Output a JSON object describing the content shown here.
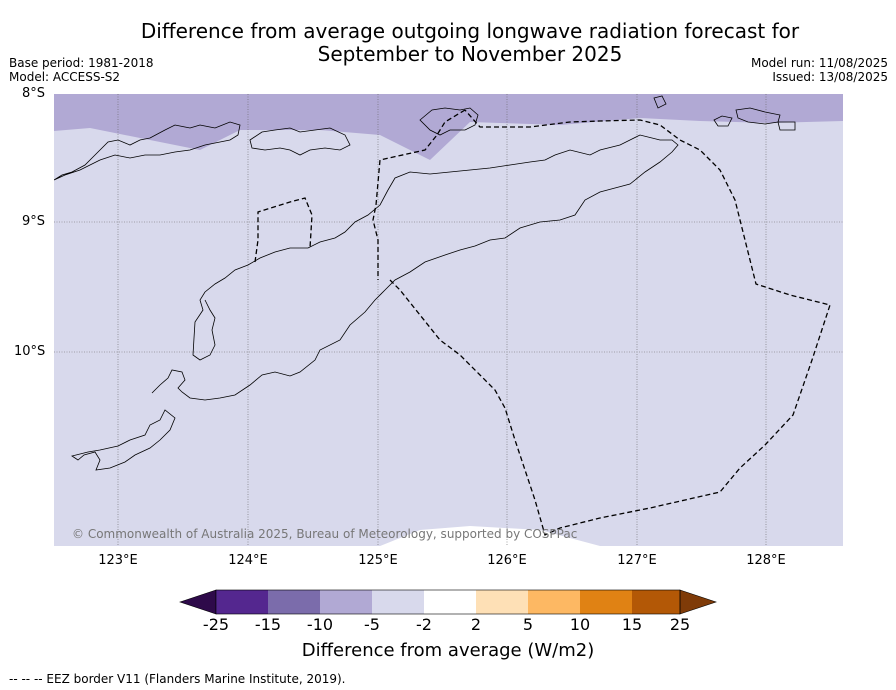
{
  "title": "Difference from average outgoing longwave radiation forecast for September to November 2025",
  "base_period": "Base period: 1981-2018",
  "model": "Model: ACCESS-S2",
  "model_run": "Model run: 11/08/2025",
  "issued": "Issued: 13/08/2025",
  "lat_labels": [
    "8°S",
    "9°S",
    "10°S"
  ],
  "lon_labels": [
    "123°E",
    "124°E",
    "125°E",
    "126°E",
    "127°E",
    "128°E"
  ],
  "copyright": "© Commonwealth of Australia 2025, Bureau of Meteorology, supported by COSPPac",
  "colorbar": {
    "ticks": [
      "-25",
      "-15",
      "-10",
      "-5",
      "-2",
      "2",
      "5",
      "10",
      "15",
      "25"
    ],
    "colors": [
      "#2e0a4a",
      "#54278f",
      "#7b6cab",
      "#b1a9d4",
      "#d8d9ec",
      "#ffffff",
      "#fee0b6",
      "#fdb863",
      "#e08214",
      "#b35806",
      "#7f3b08"
    ],
    "label": "Difference from average (W/m2)"
  },
  "legend": "--  --  -- EEZ border V11 (Flanders Marine Institute, 2019).",
  "map_fill": {
    "main_category": "-5 to -2",
    "north_category": "-10 to -5"
  }
}
